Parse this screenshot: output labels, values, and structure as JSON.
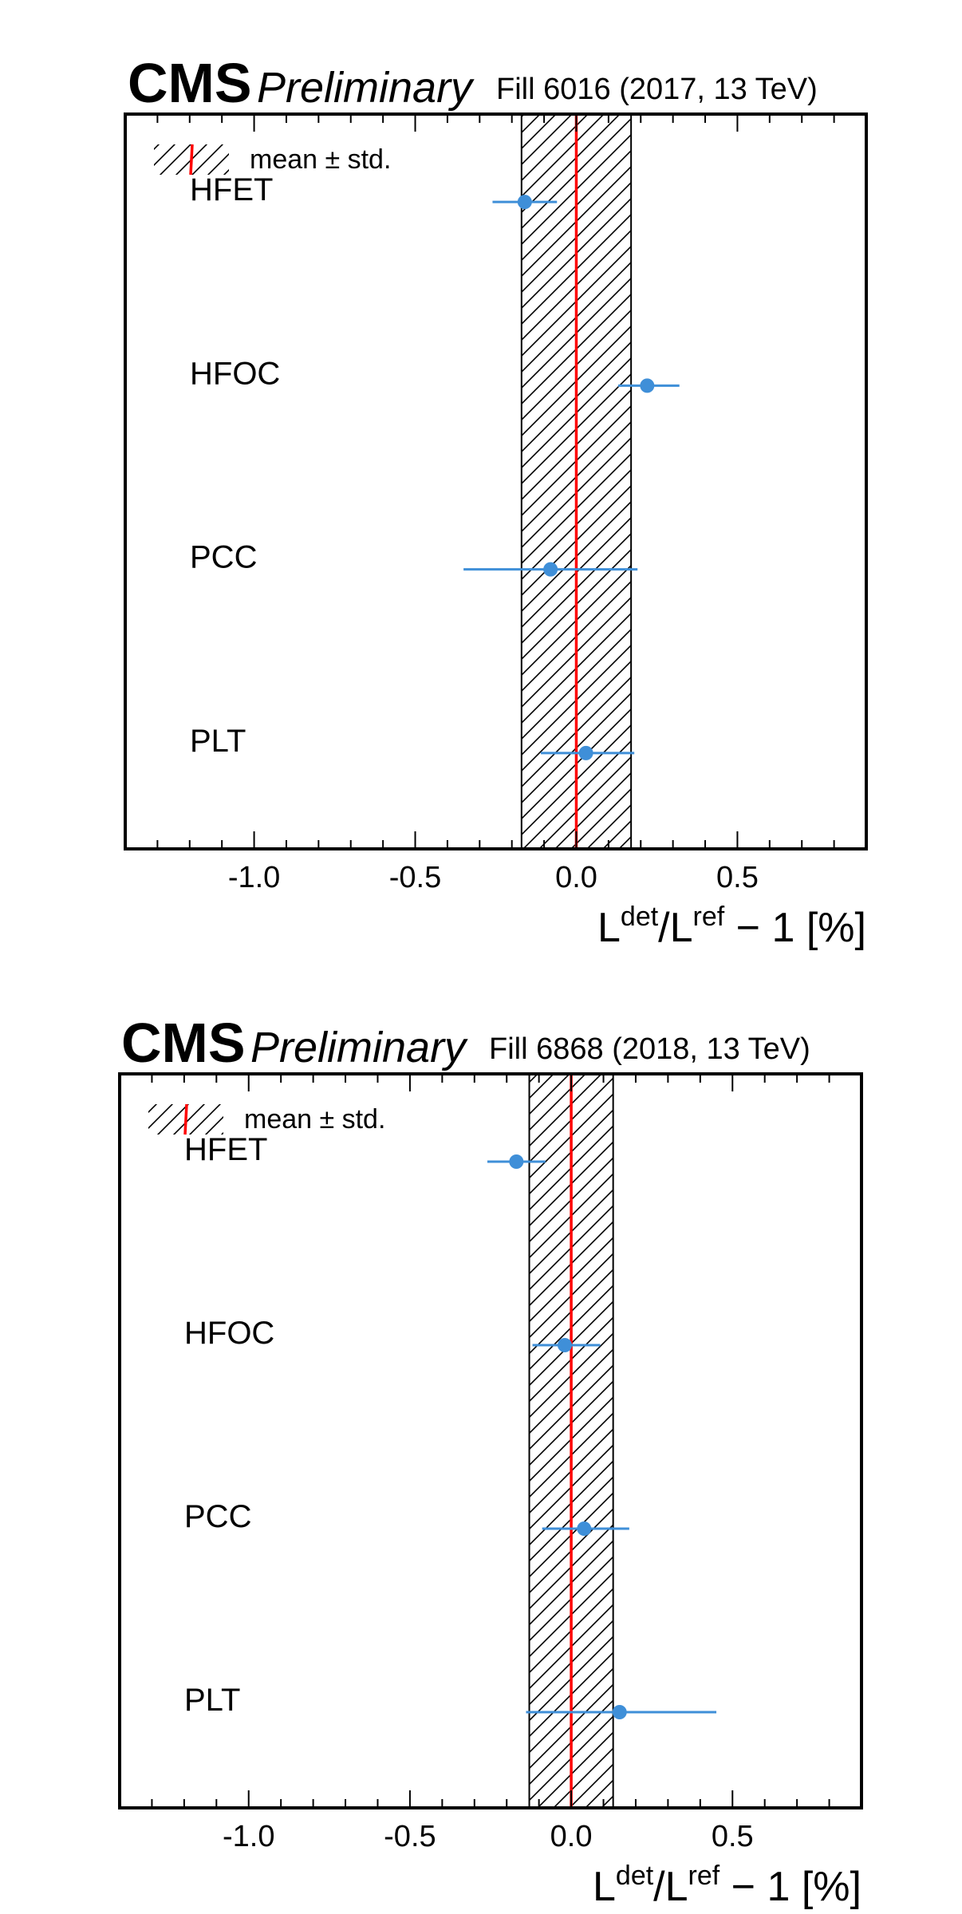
{
  "chart_data": [
    {
      "type": "scatter",
      "title": "CMS",
      "subtitle": "Preliminary",
      "fill_label": "Fill 6016 (2017, 13 TeV)",
      "xlabel": {
        "base1": "L",
        "sup1": "det",
        "base2": "/L",
        "sup2": "ref",
        "tail": " − 1 [%]"
      },
      "xlim": [
        -1.4,
        0.9
      ],
      "xticks": [
        "-1.0",
        "-0.5",
        "0.0",
        "0.5"
      ],
      "xtick_values": [
        -1.0,
        -0.5,
        0.0,
        0.5
      ],
      "legend": {
        "label": "mean ± std.",
        "position": "top-left"
      },
      "mean": 0.0,
      "std": 0.17,
      "categories": [
        "HFET",
        "HFOC",
        "PCC",
        "PLT"
      ],
      "values": [
        -0.16,
        0.22,
        -0.08,
        0.03
      ],
      "err_low": [
        0.1,
        0.09,
        0.27,
        0.14
      ],
      "err_high": [
        0.1,
        0.1,
        0.27,
        0.15
      ],
      "colors": {
        "points": "#3f8fd8",
        "mean_line": "#ff0000",
        "band": "#000000"
      }
    },
    {
      "type": "scatter",
      "title": "CMS",
      "subtitle": "Preliminary",
      "fill_label": "Fill 6868 (2018, 13 TeV)",
      "xlabel": {
        "base1": "L",
        "sup1": "det",
        "base2": "/L",
        "sup2": "ref",
        "tail": " − 1 [%]"
      },
      "xlim": [
        -1.4,
        0.9
      ],
      "xticks": [
        "-1.0",
        "-0.5",
        "0.0",
        "0.5"
      ],
      "xtick_values": [
        -1.0,
        -0.5,
        0.0,
        0.5
      ],
      "legend": {
        "label": "mean ± std.",
        "position": "top-left"
      },
      "mean": 0.0,
      "std": 0.13,
      "categories": [
        "HFET",
        "HFOC",
        "PCC",
        "PLT"
      ],
      "values": [
        -0.17,
        -0.02,
        0.04,
        0.15
      ],
      "err_low": [
        0.09,
        0.1,
        0.13,
        0.29
      ],
      "err_high": [
        0.09,
        0.11,
        0.14,
        0.3
      ],
      "colors": {
        "points": "#3f8fd8",
        "mean_line": "#ff0000",
        "band": "#000000"
      }
    }
  ]
}
